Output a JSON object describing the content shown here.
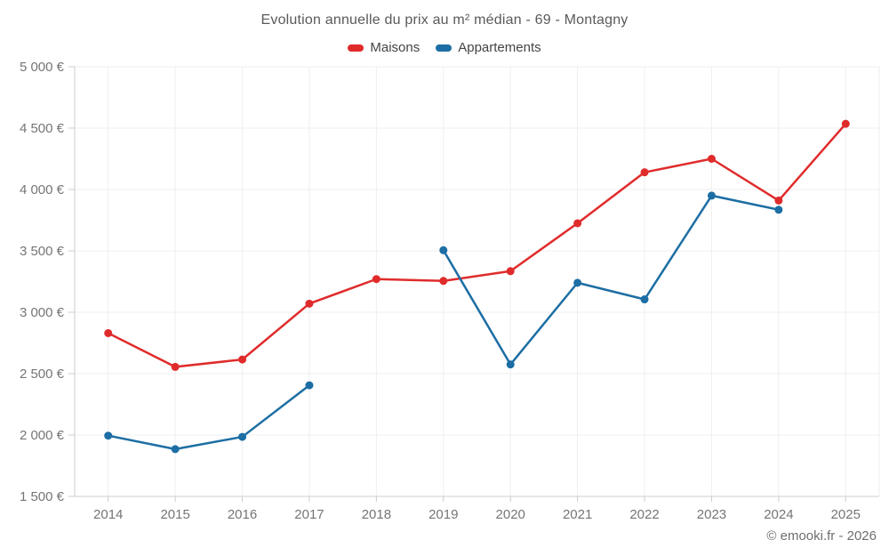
{
  "title": "Evolution annuelle du prix au m² médian - 69 - Montagny",
  "attribution": "© emooki.fr - 2026",
  "chart_data": {
    "type": "line",
    "title": "Evolution annuelle du prix au m² médian - 69 - Montagny",
    "categories": [
      "2014",
      "2015",
      "2016",
      "2017",
      "2018",
      "2019",
      "2020",
      "2021",
      "2022",
      "2023",
      "2024",
      "2025"
    ],
    "series": [
      {
        "name": "Maisons",
        "color": "#e02b2b",
        "values": [
          2830,
          2555,
          2615,
          3070,
          3270,
          3255,
          3335,
          3725,
          4140,
          4250,
          3910,
          4535
        ]
      },
      {
        "name": "Appartements",
        "color": "#1c6ea4",
        "values": [
          1995,
          1885,
          1985,
          2405,
          null,
          3505,
          2575,
          3240,
          3105,
          3950,
          3835,
          null
        ]
      }
    ],
    "y_ticks": [
      5000,
      4500,
      4000,
      3500,
      3000,
      2500,
      2000,
      1500
    ],
    "ylim": [
      1500,
      5000
    ],
    "y_unit": "€",
    "xlabel": "",
    "ylabel": "",
    "grid": true,
    "legend_position": "top"
  }
}
